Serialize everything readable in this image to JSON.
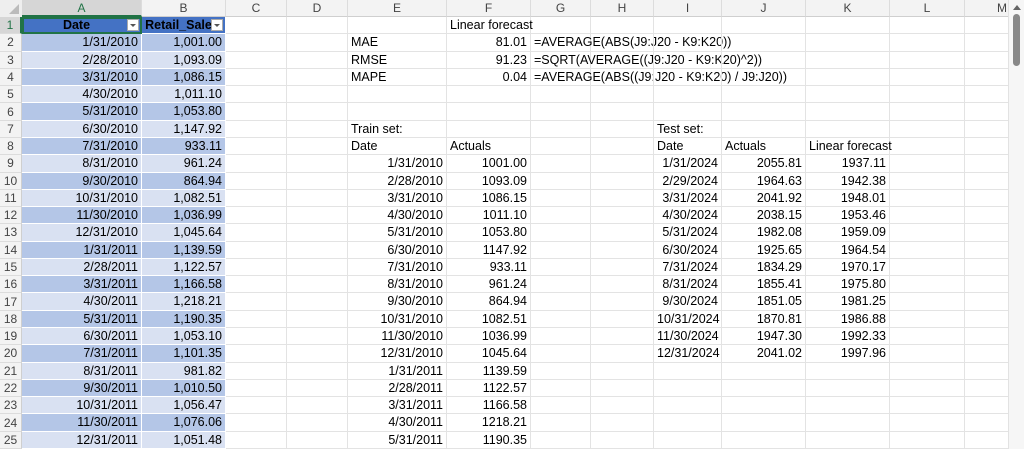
{
  "columns": [
    "A",
    "B",
    "C",
    "D",
    "E",
    "F",
    "G",
    "H",
    "I",
    "J",
    "K",
    "L",
    "M"
  ],
  "active_cell": "A1",
  "table_colors": {
    "header": "#4472C4",
    "band_dark": "#B4C6E7",
    "band_light": "#D9E1F2",
    "selection": "#217346"
  },
  "rows": [
    {
      "n": "1",
      "A": "Date",
      "B": "Retail_Sale",
      "F": "Linear forecast"
    },
    {
      "n": "2",
      "A": "1/31/2010",
      "B": "1,001.00",
      "E": "MAE",
      "F": "81.01",
      "G": "=AVERAGE(ABS(J9:J20 - K9:K20))"
    },
    {
      "n": "3",
      "A": "2/28/2010",
      "B": "1,093.09",
      "E": "RMSE",
      "F": "91.23",
      "G": "=SQRT(AVERAGE((J9:J20 - K9:K20)^2))"
    },
    {
      "n": "4",
      "A": "3/31/2010",
      "B": "1,086.15",
      "E": "MAPE",
      "F": "0.04",
      "G": "=AVERAGE(ABS((J9:J20 - K9:K20) / J9:J20))"
    },
    {
      "n": "5",
      "A": "4/30/2010",
      "B": "1,011.10"
    },
    {
      "n": "6",
      "A": "5/31/2010",
      "B": "1,053.80"
    },
    {
      "n": "7",
      "A": "6/30/2010",
      "B": "1,147.92",
      "E": "Train set:",
      "I": "Test set:"
    },
    {
      "n": "8",
      "A": "7/31/2010",
      "B": "933.11",
      "E": "Date",
      "F": "Actuals",
      "I": "Date",
      "J": "Actuals",
      "K": "Linear forecast"
    },
    {
      "n": "9",
      "A": "8/31/2010",
      "B": "961.24",
      "E": "1/31/2010",
      "F": "1001.00",
      "I": "1/31/2024",
      "J": "2055.81",
      "K": "1937.11"
    },
    {
      "n": "10",
      "A": "9/30/2010",
      "B": "864.94",
      "E": "2/28/2010",
      "F": "1093.09",
      "I": "2/29/2024",
      "J": "1964.63",
      "K": "1942.38"
    },
    {
      "n": "11",
      "A": "10/31/2010",
      "B": "1,082.51",
      "E": "3/31/2010",
      "F": "1086.15",
      "I": "3/31/2024",
      "J": "2041.92",
      "K": "1948.01"
    },
    {
      "n": "12",
      "A": "11/30/2010",
      "B": "1,036.99",
      "E": "4/30/2010",
      "F": "1011.10",
      "I": "4/30/2024",
      "J": "2038.15",
      "K": "1953.46"
    },
    {
      "n": "13",
      "A": "12/31/2010",
      "B": "1,045.64",
      "E": "5/31/2010",
      "F": "1053.80",
      "I": "5/31/2024",
      "J": "1982.08",
      "K": "1959.09"
    },
    {
      "n": "14",
      "A": "1/31/2011",
      "B": "1,139.59",
      "E": "6/30/2010",
      "F": "1147.92",
      "I": "6/30/2024",
      "J": "1925.65",
      "K": "1964.54"
    },
    {
      "n": "15",
      "A": "2/28/2011",
      "B": "1,122.57",
      "E": "7/31/2010",
      "F": "933.11",
      "I": "7/31/2024",
      "J": "1834.29",
      "K": "1970.17"
    },
    {
      "n": "16",
      "A": "3/31/2011",
      "B": "1,166.58",
      "E": "8/31/2010",
      "F": "961.24",
      "I": "8/31/2024",
      "J": "1855.41",
      "K": "1975.80"
    },
    {
      "n": "17",
      "A": "4/30/2011",
      "B": "1,218.21",
      "E": "9/30/2010",
      "F": "864.94",
      "I": "9/30/2024",
      "J": "1851.05",
      "K": "1981.25"
    },
    {
      "n": "18",
      "A": "5/31/2011",
      "B": "1,190.35",
      "E": "10/31/2010",
      "F": "1082.51",
      "I": "10/31/2024",
      "J": "1870.81",
      "K": "1986.88"
    },
    {
      "n": "19",
      "A": "6/30/2011",
      "B": "1,053.10",
      "E": "11/30/2010",
      "F": "1036.99",
      "I": "11/30/2024",
      "J": "1947.30",
      "K": "1992.33"
    },
    {
      "n": "20",
      "A": "7/31/2011",
      "B": "1,101.35",
      "E": "12/31/2010",
      "F": "1045.64",
      "I": "12/31/2024",
      "J": "2041.02",
      "K": "1997.96"
    },
    {
      "n": "21",
      "A": "8/31/2011",
      "B": "981.82",
      "E": "1/31/2011",
      "F": "1139.59"
    },
    {
      "n": "22",
      "A": "9/30/2011",
      "B": "1,010.50",
      "E": "2/28/2011",
      "F": "1122.57"
    },
    {
      "n": "23",
      "A": "10/31/2011",
      "B": "1,056.47",
      "E": "3/31/2011",
      "F": "1166.58"
    },
    {
      "n": "24",
      "A": "11/30/2011",
      "B": "1,076.06",
      "E": "4/30/2011",
      "F": "1218.21"
    },
    {
      "n": "25",
      "A": "12/31/2011",
      "B": "1,051.48",
      "E": "5/31/2011",
      "F": "1190.35"
    }
  ]
}
